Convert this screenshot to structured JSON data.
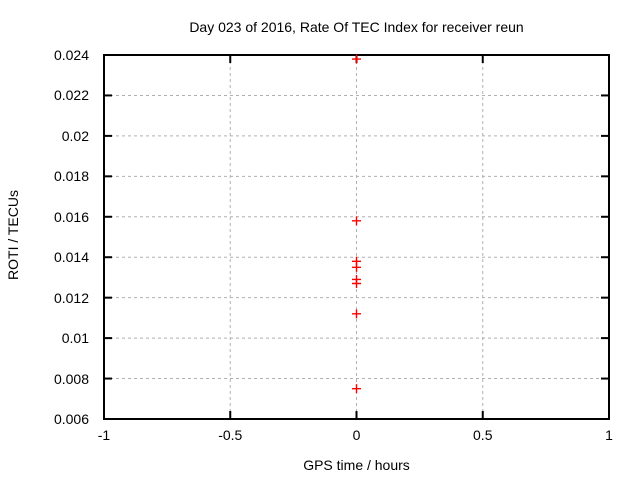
{
  "chart_data": {
    "type": "scatter",
    "title": "Day 023 of 2016, Rate Of TEC Index for receiver reun",
    "xlabel": "GPS time / hours",
    "ylabel": "ROTI / TECUs",
    "xlim": [
      -1,
      1
    ],
    "ylim": [
      0.006,
      0.024
    ],
    "xticks": [
      -1,
      -0.5,
      0,
      0.5,
      1
    ],
    "xtick_labels": [
      "-1",
      "-0.5",
      "0",
      "0.5",
      "1"
    ],
    "yticks": [
      0.006,
      0.008,
      0.01,
      0.012,
      0.014,
      0.016,
      0.018,
      0.02,
      0.022,
      0.024
    ],
    "ytick_labels": [
      "0.006",
      "0.008",
      "0.01",
      "0.012",
      "0.014",
      "0.016",
      "0.018",
      "0.02",
      "0.022",
      "0.024"
    ],
    "grid": true,
    "legend": "none",
    "marker": {
      "shape": "plus",
      "color": "#ff0000",
      "size": 9
    },
    "colors": {
      "border": "#000000",
      "grid": "#b0b0b0",
      "text": "#000000",
      "background": "#ffffff"
    },
    "series": [
      {
        "name": "ROTI",
        "points": [
          [
            0,
            0.0238
          ],
          [
            0,
            0.0158
          ],
          [
            0,
            0.0138
          ],
          [
            0,
            0.0135
          ],
          [
            0,
            0.0129
          ],
          [
            0,
            0.0127
          ],
          [
            0,
            0.0112
          ],
          [
            0,
            0.0075
          ]
        ]
      }
    ]
  }
}
